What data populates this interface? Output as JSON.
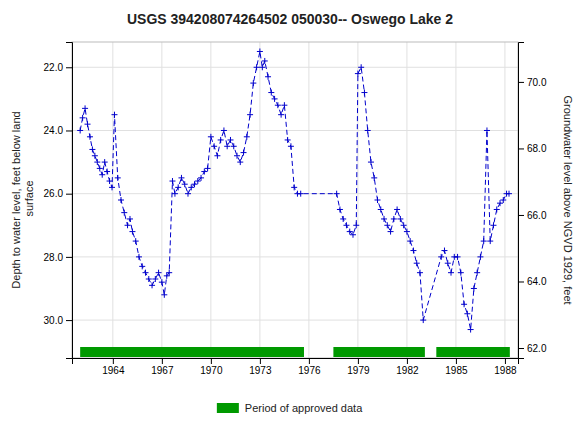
{
  "chart_data": {
    "type": "line",
    "title": "USGS 394208074264502 050030-- Oswego Lake 2",
    "ylabel": "Depth to water level, feet below land\n surface",
    "y2label": "Groundwater level above NGVD 1929, feet",
    "xlim": [
      1961.5,
      1988.8
    ],
    "xticks": [
      1964,
      1967,
      1970,
      1973,
      1976,
      1979,
      1982,
      1985,
      1988
    ],
    "ylim": [
      31.2,
      21.2
    ],
    "yticks": [
      {
        "value": 22.0,
        "label": "22.0"
      },
      {
        "value": 24.0,
        "label": "24.0"
      },
      {
        "value": 26.0,
        "label": "26.0"
      },
      {
        "value": 28.0,
        "label": "28.0"
      },
      {
        "value": 30.0,
        "label": "30.0"
      }
    ],
    "y2lim": [
      61.7,
      71.2
    ],
    "y2ticks": [
      {
        "value": 62.0,
        "label": "62.0"
      },
      {
        "value": 64.0,
        "label": "64.0"
      },
      {
        "value": 66.0,
        "label": "66.0"
      },
      {
        "value": 68.0,
        "label": "68.0"
      },
      {
        "value": 70.0,
        "label": "70.0"
      }
    ],
    "grid": true,
    "series": [
      {
        "type": "line",
        "color": "#0000cc",
        "line_style": "dashed",
        "marker": "plus",
        "x": [
          1962.0,
          1962.15,
          1962.3,
          1962.45,
          1962.6,
          1962.75,
          1962.9,
          1963.05,
          1963.2,
          1963.35,
          1963.5,
          1963.65,
          1963.8,
          1963.95,
          1964.1,
          1964.3,
          1964.5,
          1964.7,
          1964.9,
          1965.05,
          1965.2,
          1965.4,
          1965.6,
          1965.8,
          1966.0,
          1966.2,
          1966.4,
          1966.6,
          1966.8,
          1967.0,
          1967.15,
          1967.3,
          1967.45,
          1967.65,
          1967.8,
          1968.0,
          1968.2,
          1968.4,
          1968.6,
          1968.8,
          1969.0,
          1969.2,
          1969.4,
          1969.6,
          1969.8,
          1970.0,
          1970.2,
          1970.4,
          1970.6,
          1970.8,
          1971.0,
          1971.2,
          1971.4,
          1971.6,
          1971.8,
          1972.0,
          1972.2,
          1972.4,
          1972.6,
          1972.8,
          1973.0,
          1973.15,
          1973.3,
          1973.5,
          1973.7,
          1973.9,
          1974.1,
          1974.3,
          1974.5,
          1974.7,
          1974.9,
          1975.1,
          1975.3,
          1975.5,
          1977.7,
          1977.9,
          1978.1,
          1978.3,
          1978.5,
          1978.7,
          1978.9,
          1979.0,
          1979.2,
          1979.4,
          1979.6,
          1979.8,
          1980.0,
          1980.2,
          1980.4,
          1980.6,
          1980.8,
          1981.0,
          1981.2,
          1981.4,
          1981.6,
          1981.8,
          1982.0,
          1982.2,
          1982.4,
          1982.6,
          1982.8,
          1983.0,
          1984.1,
          1984.3,
          1984.5,
          1984.7,
          1984.9,
          1985.1,
          1985.3,
          1985.5,
          1985.7,
          1985.9,
          1986.1,
          1986.3,
          1986.5,
          1986.7,
          1986.9,
          1987.1,
          1987.3,
          1987.5,
          1987.7,
          1987.9,
          1988.1,
          1988.25
        ],
        "values": [
          24.0,
          23.6,
          23.3,
          23.8,
          24.2,
          24.6,
          24.8,
          25.0,
          25.2,
          25.4,
          25.0,
          25.3,
          25.6,
          25.8,
          23.5,
          25.5,
          26.2,
          26.6,
          27.0,
          26.8,
          27.2,
          27.5,
          28.0,
          28.3,
          28.5,
          28.7,
          28.9,
          28.7,
          28.5,
          28.8,
          29.2,
          28.6,
          28.5,
          25.6,
          26.0,
          25.8,
          25.5,
          25.7,
          26.0,
          25.8,
          25.7,
          25.6,
          25.5,
          25.3,
          25.2,
          24.2,
          24.5,
          24.8,
          24.3,
          24.0,
          24.5,
          24.3,
          24.5,
          24.8,
          25.0,
          24.7,
          24.2,
          23.5,
          22.5,
          22.0,
          21.5,
          22.0,
          21.8,
          22.3,
          22.8,
          23.0,
          23.2,
          23.5,
          23.2,
          24.3,
          24.5,
          25.8,
          26.0,
          26.0,
          26.0,
          26.5,
          26.8,
          27.0,
          27.2,
          27.3,
          27.0,
          22.2,
          22.0,
          22.8,
          24.0,
          25.0,
          25.5,
          26.2,
          26.5,
          26.8,
          27.0,
          27.2,
          26.8,
          26.5,
          26.8,
          27.0,
          27.2,
          27.5,
          27.8,
          28.2,
          28.5,
          30.0,
          28.0,
          27.8,
          28.2,
          28.5,
          28.0,
          28.0,
          28.5,
          29.5,
          29.8,
          30.3,
          29.0,
          28.5,
          28.0,
          27.5,
          24.0,
          27.5,
          27.0,
          26.5,
          26.3,
          26.2,
          26.0,
          26.0
        ]
      },
      {
        "type": "span",
        "name": "Period of approved data",
        "color": "#009900",
        "x": [
          [
            1962.0,
            1975.7
          ],
          [
            1977.5,
            1983.1
          ],
          [
            1983.8,
            1988.3
          ]
        ]
      }
    ]
  }
}
